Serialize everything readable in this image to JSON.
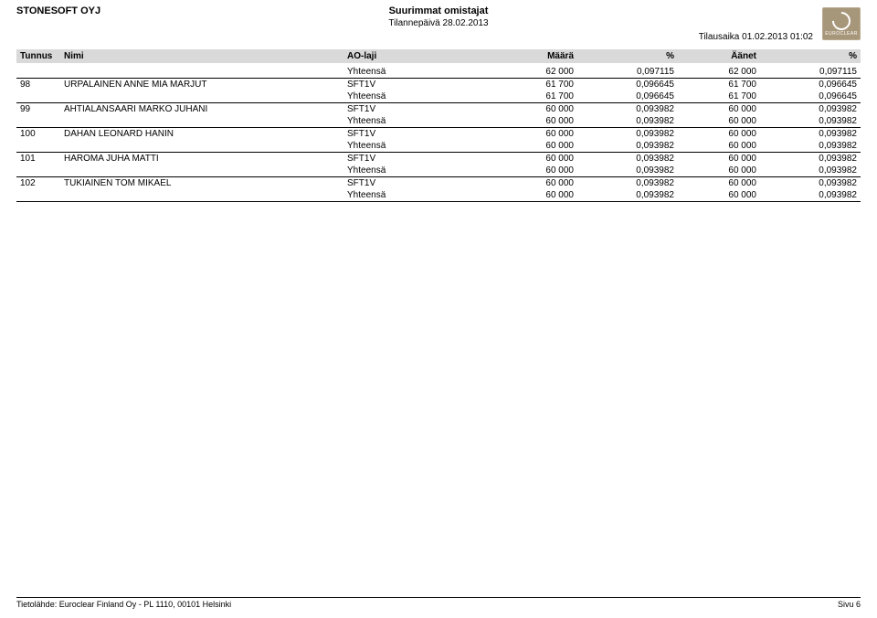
{
  "header": {
    "company": "STONESOFT OYJ",
    "title": "Suurimmat omistajat",
    "subtitle": "Tilannepäivä 28.02.2013",
    "order_time": "Tilausaika 01.02.2013 01:02",
    "logo_label": "EUROCLEAR"
  },
  "columns": {
    "tunnus": "Tunnus",
    "nimi": "Nimi",
    "ao": "AO-laji",
    "maara": "Määrä",
    "pct1": "%",
    "aanet": "Äänet",
    "pct2": "%"
  },
  "carry": {
    "label": "Yhteensä",
    "maara": "62 000",
    "pct1": "0,097115",
    "aanet": "62 000",
    "pct2": "0,097115"
  },
  "rows": [
    {
      "tunnus": "98",
      "nimi": "URPALAINEN ANNE MIA MARJUT",
      "ao": "SFT1V",
      "maara": "61 700",
      "pct1": "0,096645",
      "aanet": "61 700",
      "pct2": "0,096645",
      "tot_label": "Yhteensä",
      "tot_maara": "61 700",
      "tot_pct1": "0,096645",
      "tot_aanet": "61 700",
      "tot_pct2": "0,096645"
    },
    {
      "tunnus": "99",
      "nimi": "AHTIALANSAARI MARKO JUHANI",
      "ao": "SFT1V",
      "maara": "60 000",
      "pct1": "0,093982",
      "aanet": "60 000",
      "pct2": "0,093982",
      "tot_label": "Yhteensä",
      "tot_maara": "60 000",
      "tot_pct1": "0,093982",
      "tot_aanet": "60 000",
      "tot_pct2": "0,093982"
    },
    {
      "tunnus": "100",
      "nimi": "DAHAN LEONARD HANIN",
      "ao": "SFT1V",
      "maara": "60 000",
      "pct1": "0,093982",
      "aanet": "60 000",
      "pct2": "0,093982",
      "tot_label": "Yhteensä",
      "tot_maara": "60 000",
      "tot_pct1": "0,093982",
      "tot_aanet": "60 000",
      "tot_pct2": "0,093982"
    },
    {
      "tunnus": "101",
      "nimi": "HAROMA JUHA MATTI",
      "ao": "SFT1V",
      "maara": "60 000",
      "pct1": "0,093982",
      "aanet": "60 000",
      "pct2": "0,093982",
      "tot_label": "Yhteensä",
      "tot_maara": "60 000",
      "tot_pct1": "0,093982",
      "tot_aanet": "60 000",
      "tot_pct2": "0,093982"
    },
    {
      "tunnus": "102",
      "nimi": "TUKIAINEN TOM MIKAEL",
      "ao": "SFT1V",
      "maara": "60 000",
      "pct1": "0,093982",
      "aanet": "60 000",
      "pct2": "0,093982",
      "tot_label": "Yhteensä",
      "tot_maara": "60 000",
      "tot_pct1": "0,093982",
      "tot_aanet": "60 000",
      "tot_pct2": "0,093982"
    }
  ],
  "footer": {
    "source": "Tietolähde: Euroclear Finland Oy - PL 1110, 00101 Helsinki",
    "page": "Sivu 6"
  }
}
